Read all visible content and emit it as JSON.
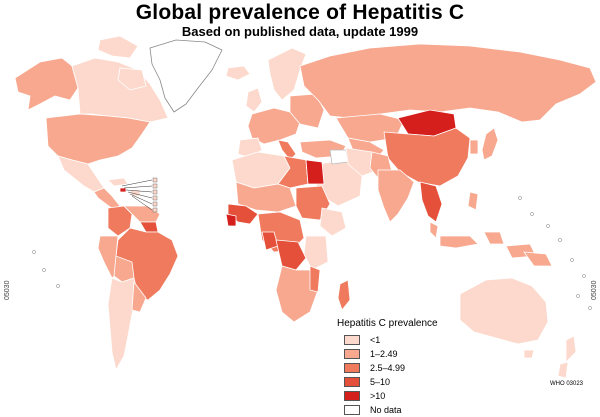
{
  "title": "Global prevalence of Hepatitis C",
  "subtitle": "Based on published data, update 1999",
  "legend": {
    "title": "Hepatitis C prevalence",
    "items": [
      {
        "label": "<1",
        "color": "#fcd9cc"
      },
      {
        "label": "1–2.49",
        "color": "#f7a88f"
      },
      {
        "label": "2.5–4.99",
        "color": "#ef7a5e"
      },
      {
        "label": "5–10",
        "color": "#e5503a"
      },
      {
        "label": ">10",
        "color": "#d51f1c"
      },
      {
        "label": "No data",
        "color": "#ffffff"
      }
    ]
  },
  "side_code_left": "05030",
  "side_code_right": "05030",
  "credit": "WHO 03023"
}
